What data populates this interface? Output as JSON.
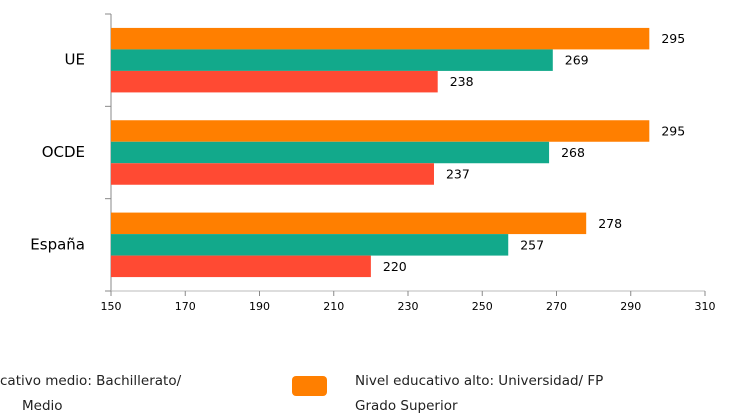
{
  "chart_data": {
    "type": "bar",
    "orientation": "horizontal",
    "categories": [
      "UE",
      "OCDE",
      "España"
    ],
    "series": [
      {
        "name": [
          "Nivel educativo alto: Universidad/ FP",
          "Grado Superior"
        ],
        "color": "#ff7f00",
        "values": [
          295,
          295,
          278
        ]
      },
      {
        "name": [
          "cativo medio: Bachillerato/",
          "Medio"
        ],
        "color": "#12a98b",
        "values": [
          269,
          268,
          257
        ]
      },
      {
        "color": "#ff4a33",
        "values": [
          238,
          237,
          220
        ]
      }
    ],
    "xlim": [
      150,
      310
    ],
    "xticks": [
      150,
      170,
      190,
      210,
      230,
      250,
      270,
      290,
      310
    ],
    "grid": false
  }
}
